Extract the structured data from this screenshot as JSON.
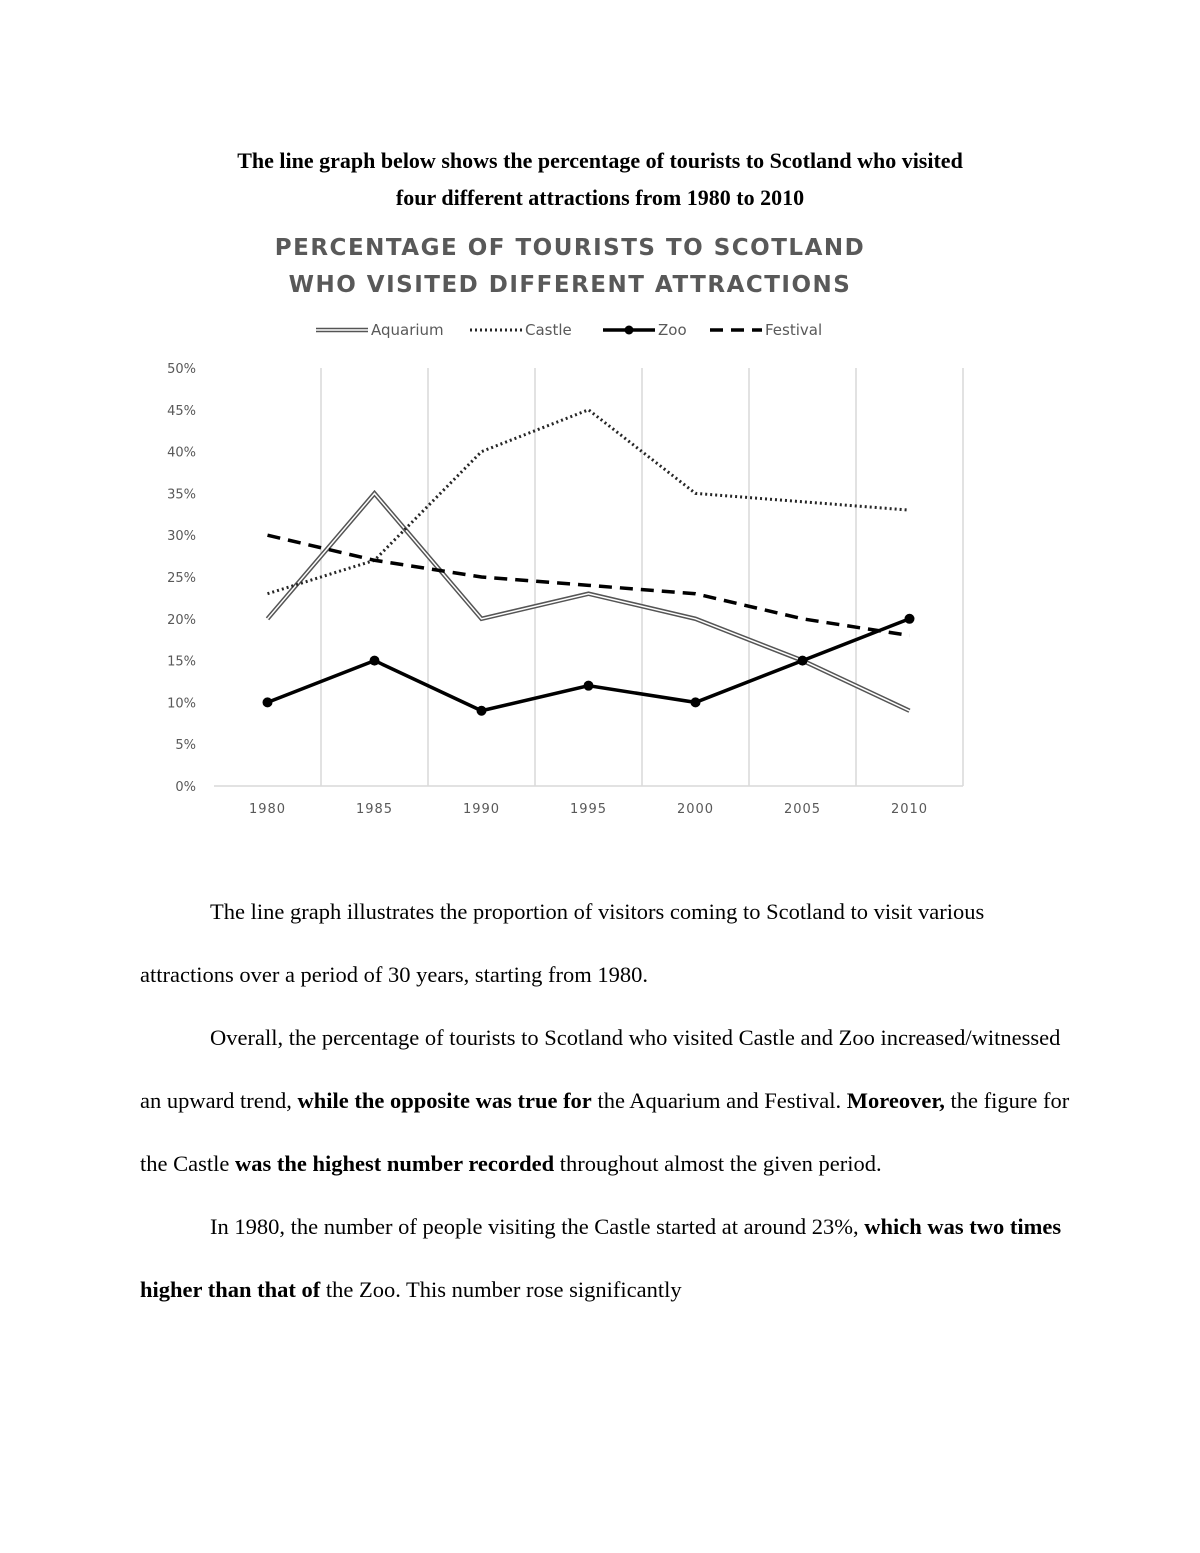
{
  "heading": {
    "line1": "The line graph below shows the percentage of tourists to Scotland who visited",
    "line2": "four different attractions from 1980 to 2010"
  },
  "chart_data": {
    "type": "line",
    "title_line1": "PERCENTAGE OF TOURISTS TO SCOTLAND",
    "title_line2": "WHO VISITED DIFFERENT ATTRACTIONS",
    "categories": [
      "1980",
      "1985",
      "1990",
      "1995",
      "2000",
      "2005",
      "2010"
    ],
    "yticks": [
      "0%",
      "5%",
      "10%",
      "15%",
      "20%",
      "25%",
      "30%",
      "35%",
      "40%",
      "45%",
      "50%"
    ],
    "ylim": [
      0,
      50
    ],
    "legend_placement": "top",
    "grid": "vertical",
    "series": [
      {
        "name": "Aquarium",
        "style": "double-line",
        "color": "#7f7f7f",
        "values": [
          20,
          35,
          20,
          23,
          20,
          15,
          9
        ]
      },
      {
        "name": "Castle",
        "style": "dotted",
        "color": "#262626",
        "values": [
          23,
          27,
          40,
          45,
          35,
          34,
          33
        ]
      },
      {
        "name": "Zoo",
        "style": "solid-markers",
        "color": "#000000",
        "values": [
          10,
          15,
          9,
          12,
          10,
          15,
          20
        ]
      },
      {
        "name": "Festival",
        "style": "dashed",
        "color": "#000000",
        "values": [
          30,
          27,
          25,
          24,
          23,
          20,
          18
        ]
      }
    ]
  },
  "essay": {
    "p1": "The line graph illustrates the proportion of visitors coming to Scotland to visit various attractions over a period of 30 years, starting from 1980.",
    "p2": [
      {
        "t": "Overall, the percentage of tourists to Scotland who visited Castle and Zoo increased/witnessed an upward trend, ",
        "b": false
      },
      {
        "t": "while the opposite was true for",
        "b": true
      },
      {
        "t": " the Aquarium and Festival. ",
        "b": false
      },
      {
        "t": "Moreover,",
        "b": true
      },
      {
        "t": " the figure for the Castle ",
        "b": false
      },
      {
        "t": "was the highest number recorded",
        "b": true
      },
      {
        "t": " throughout almost the given period.",
        "b": false
      }
    ],
    "p3": [
      {
        "t": "In 1980, the number of people visiting the Castle started at around 23%, ",
        "b": false
      },
      {
        "t": "which was two times higher than that of",
        "b": true
      },
      {
        "t": " the Zoo. This number rose significantly",
        "b": false
      }
    ]
  }
}
